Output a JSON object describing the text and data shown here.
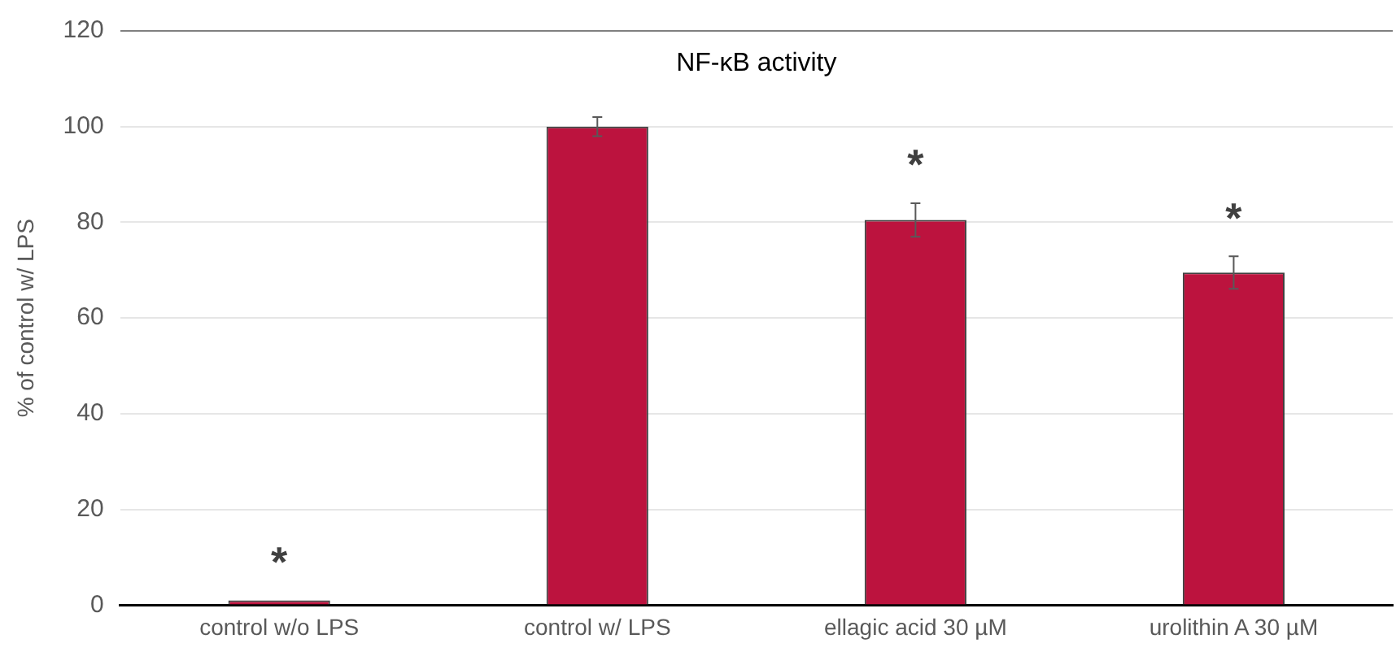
{
  "chart_data": {
    "type": "bar",
    "title": "NF-κB activity",
    "ylabel": "% of control w/ LPS",
    "categories": [
      "control w/o LPS",
      "control w/ LPS",
      "ellagic acid 30 µM",
      "urolithin A 30 µM"
    ],
    "values": [
      1,
      100,
      80.5,
      69.5
    ],
    "errors": [
      null,
      2,
      3.5,
      3.4
    ],
    "color": "#bc133e",
    "ylim": [
      0,
      120
    ],
    "yticks": [
      0,
      20,
      40,
      60,
      80,
      100,
      120
    ],
    "grid": "y",
    "annotations": [
      {
        "text": "*",
        "x": "control w/o LPS",
        "y": 1
      },
      {
        "text": "*",
        "x": "ellagic acid 30 µM",
        "y": 80.5
      },
      {
        "text": "*",
        "x": "urolithin A 30 µM",
        "y": 69.5
      }
    ]
  }
}
